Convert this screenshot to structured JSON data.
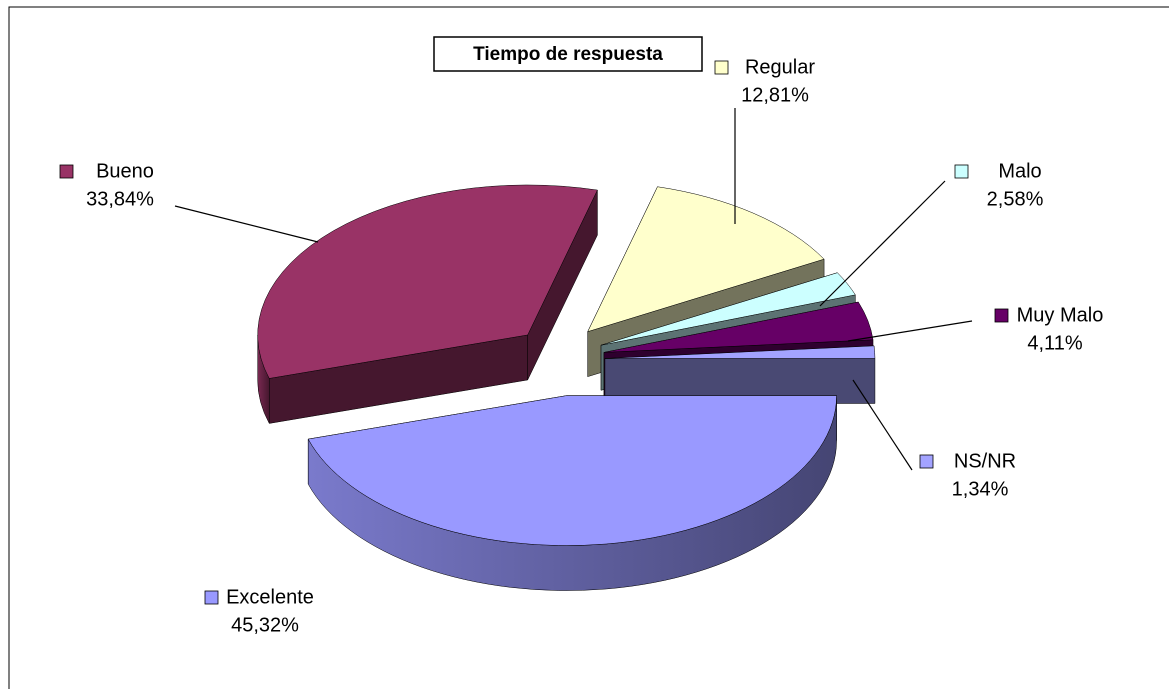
{
  "chart_data": {
    "type": "pie3d",
    "title": "Tiempo de respuesta",
    "categories": [
      "Excelente",
      "Bueno",
      "Regular",
      "Malo",
      "Muy Malo",
      "NS/NR"
    ],
    "values": [
      45.32,
      33.84,
      12.81,
      2.58,
      4.11,
      1.34
    ],
    "value_labels": [
      "45,32%",
      "33,84%",
      "12,81%",
      "2,58%",
      "4,11%",
      "1,34%"
    ],
    "colors": [
      "#9999ff",
      "#993366",
      "#ffffcc",
      "#ccffff",
      "#660066",
      "#a3a3ff"
    ]
  }
}
